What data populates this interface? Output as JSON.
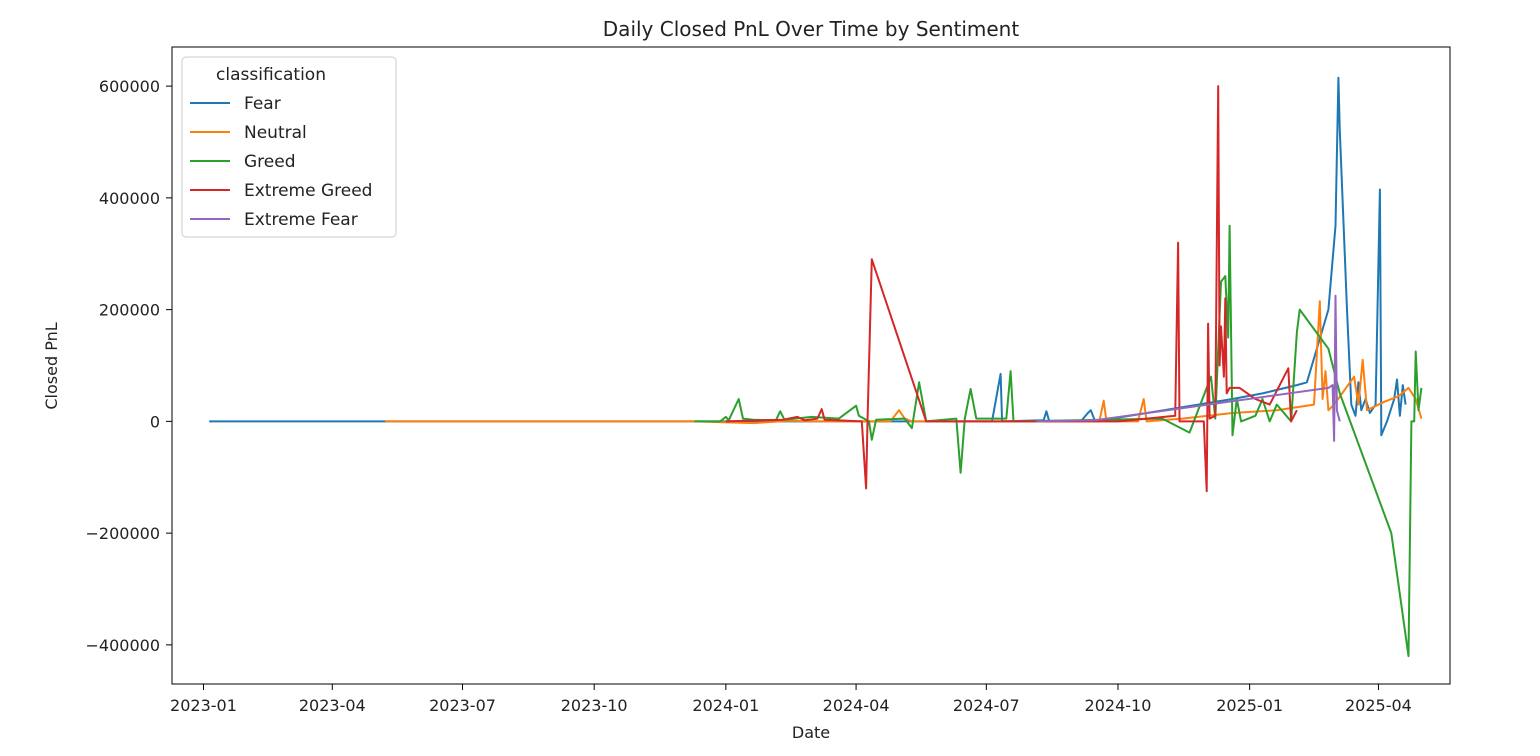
{
  "chart_data": {
    "type": "line",
    "title": "Daily Closed PnL Over Time by Sentiment",
    "xlabel": "Date",
    "ylabel": "Closed PnL",
    "x_range": [
      "2022-12-10",
      "2025-05-21"
    ],
    "ylim": [
      -470000,
      670000
    ],
    "x_ticks": [
      "2023-01-01",
      "2023-04-01",
      "2023-07-01",
      "2023-10-01",
      "2024-01-01",
      "2024-04-01",
      "2024-07-01",
      "2024-10-01",
      "2025-01-01",
      "2025-04-01"
    ],
    "x_tick_labels": [
      "2023-01",
      "2023-04",
      "2023-07",
      "2023-10",
      "2024-01",
      "2024-04",
      "2024-07",
      "2024-10",
      "2025-01",
      "2025-04"
    ],
    "y_ticks": [
      -400000,
      -200000,
      0,
      200000,
      400000,
      600000
    ],
    "y_tick_labels": [
      "−400000",
      "−200000",
      "0",
      "200000",
      "400000",
      "600000"
    ],
    "grid": false,
    "legend": {
      "title": "classification",
      "placement": "upper-left"
    },
    "series": [
      {
        "name": "Fear",
        "color": "#1f77b4",
        "points": [
          [
            "2023-01-05",
            0
          ],
          [
            "2023-05-08",
            0
          ],
          [
            "2024-07-05",
            0
          ],
          [
            "2024-07-11",
            85000
          ],
          [
            "2024-07-12",
            0
          ],
          [
            "2024-08-10",
            2000
          ],
          [
            "2024-08-12",
            18000
          ],
          [
            "2024-08-14",
            0
          ],
          [
            "2024-09-05",
            0
          ],
          [
            "2024-09-10",
            15000
          ],
          [
            "2024-09-12",
            20000
          ],
          [
            "2024-09-15",
            0
          ],
          [
            "2024-12-20",
            40000
          ],
          [
            "2025-01-10",
            50000
          ],
          [
            "2025-02-03",
            65000
          ],
          [
            "2025-02-10",
            70000
          ],
          [
            "2025-02-25",
            200000
          ],
          [
            "2025-03-02",
            350000
          ],
          [
            "2025-03-04",
            615000
          ],
          [
            "2025-03-05",
            520000
          ],
          [
            "2025-03-10",
            200000
          ],
          [
            "2025-03-13",
            30000
          ],
          [
            "2025-03-16",
            10000
          ],
          [
            "2025-03-18",
            70000
          ],
          [
            "2025-03-20",
            20000
          ],
          [
            "2025-03-23",
            40000
          ],
          [
            "2025-03-26",
            15000
          ],
          [
            "2025-03-30",
            30000
          ],
          [
            "2025-04-02",
            415000
          ],
          [
            "2025-04-03",
            -25000
          ],
          [
            "2025-04-07",
            0
          ],
          [
            "2025-04-12",
            40000
          ],
          [
            "2025-04-14",
            75000
          ],
          [
            "2025-04-16",
            10000
          ],
          [
            "2025-04-18",
            65000
          ],
          [
            "2025-04-20",
            30000
          ]
        ]
      },
      {
        "name": "Neutral",
        "color": "#ff7f0e",
        "points": [
          [
            "2023-05-08",
            0
          ],
          [
            "2023-12-10",
            0
          ],
          [
            "2024-01-20",
            -3000
          ],
          [
            "2024-02-15",
            1000
          ],
          [
            "2024-03-01",
            0
          ],
          [
            "2024-04-25",
            0
          ],
          [
            "2024-05-01",
            20000
          ],
          [
            "2024-05-05",
            5000
          ],
          [
            "2024-05-10",
            0
          ],
          [
            "2024-09-18",
            0
          ],
          [
            "2024-09-21",
            37000
          ],
          [
            "2024-09-23",
            0
          ],
          [
            "2024-10-15",
            0
          ],
          [
            "2024-10-19",
            40000
          ],
          [
            "2024-10-21",
            0
          ],
          [
            "2024-11-15",
            5000
          ],
          [
            "2024-12-20",
            15000
          ],
          [
            "2025-01-20",
            20000
          ],
          [
            "2025-02-15",
            30000
          ],
          [
            "2025-02-19",
            215000
          ],
          [
            "2025-02-21",
            40000
          ],
          [
            "2025-02-23",
            90000
          ],
          [
            "2025-02-25",
            20000
          ],
          [
            "2025-03-01",
            30000
          ],
          [
            "2025-03-15",
            80000
          ],
          [
            "2025-03-18",
            30000
          ],
          [
            "2025-03-21",
            110000
          ],
          [
            "2025-03-24",
            20000
          ],
          [
            "2025-04-05",
            35000
          ],
          [
            "2025-04-15",
            45000
          ],
          [
            "2025-04-22",
            60000
          ],
          [
            "2025-04-27",
            40000
          ],
          [
            "2025-05-01",
            5000
          ]
        ]
      },
      {
        "name": "Greed",
        "color": "#2ca02c",
        "points": [
          [
            "2023-12-10",
            0
          ],
          [
            "2023-12-28",
            0
          ],
          [
            "2024-01-01",
            8000
          ],
          [
            "2024-01-03",
            2000
          ],
          [
            "2024-01-10",
            40000
          ],
          [
            "2024-01-13",
            5000
          ],
          [
            "2024-01-20",
            3000
          ],
          [
            "2024-02-05",
            2000
          ],
          [
            "2024-02-08",
            18000
          ],
          [
            "2024-02-11",
            3000
          ],
          [
            "2024-03-01",
            8000
          ],
          [
            "2024-03-20",
            5000
          ],
          [
            "2024-04-01",
            28000
          ],
          [
            "2024-04-03",
            10000
          ],
          [
            "2024-04-10",
            0
          ],
          [
            "2024-04-12",
            -33000
          ],
          [
            "2024-04-15",
            3000
          ],
          [
            "2024-05-05",
            5000
          ],
          [
            "2024-05-10",
            -12000
          ],
          [
            "2024-05-15",
            70000
          ],
          [
            "2024-05-20",
            0
          ],
          [
            "2024-06-10",
            5000
          ],
          [
            "2024-06-13",
            -92000
          ],
          [
            "2024-06-16",
            5000
          ],
          [
            "2024-06-20",
            58000
          ],
          [
            "2024-06-24",
            5000
          ],
          [
            "2024-07-15",
            5000
          ],
          [
            "2024-07-18",
            90000
          ],
          [
            "2024-07-20",
            0
          ],
          [
            "2024-11-01",
            5000
          ],
          [
            "2024-11-20",
            -20000
          ],
          [
            "2024-12-05",
            80000
          ],
          [
            "2024-12-08",
            5000
          ],
          [
            "2024-12-12",
            250000
          ],
          [
            "2024-12-15",
            260000
          ],
          [
            "2024-12-17",
            150000
          ],
          [
            "2024-12-18",
            350000
          ],
          [
            "2024-12-20",
            -25000
          ],
          [
            "2024-12-23",
            40000
          ],
          [
            "2024-12-26",
            0
          ],
          [
            "2025-01-05",
            10000
          ],
          [
            "2025-01-10",
            40000
          ],
          [
            "2025-01-15",
            0
          ],
          [
            "2025-01-20",
            30000
          ],
          [
            "2025-01-30",
            0
          ],
          [
            "2025-02-03",
            160000
          ],
          [
            "2025-02-05",
            200000
          ],
          [
            "2025-02-25",
            130000
          ],
          [
            "2025-03-05",
            50000
          ],
          [
            "2025-04-10",
            -200000
          ],
          [
            "2025-04-22",
            -420000
          ],
          [
            "2025-04-24",
            0
          ],
          [
            "2025-04-26",
            0
          ],
          [
            "2025-04-27",
            125000
          ],
          [
            "2025-04-29",
            20000
          ],
          [
            "2025-05-01",
            60000
          ]
        ]
      },
      {
        "name": "Extreme Greed",
        "color": "#d62728",
        "points": [
          [
            "2024-01-01",
            0
          ],
          [
            "2024-02-10",
            3000
          ],
          [
            "2024-02-20",
            8000
          ],
          [
            "2024-02-25",
            2000
          ],
          [
            "2024-03-05",
            5000
          ],
          [
            "2024-03-08",
            22000
          ],
          [
            "2024-03-10",
            3000
          ],
          [
            "2024-04-05",
            0
          ],
          [
            "2024-04-08",
            -120000
          ],
          [
            "2024-04-09",
            0
          ],
          [
            "2024-04-12",
            290000
          ],
          [
            "2024-05-20",
            0
          ],
          [
            "2024-08-01",
            0
          ],
          [
            "2024-10-01",
            0
          ],
          [
            "2024-11-10",
            10000
          ],
          [
            "2024-11-12",
            320000
          ],
          [
            "2024-11-13",
            0
          ],
          [
            "2024-11-30",
            0
          ],
          [
            "2024-12-02",
            -125000
          ],
          [
            "2024-12-03",
            175000
          ],
          [
            "2024-12-04",
            5000
          ],
          [
            "2024-12-08",
            10000
          ],
          [
            "2024-12-10",
            600000
          ],
          [
            "2024-12-11",
            100000
          ],
          [
            "2024-12-12",
            170000
          ],
          [
            "2024-12-14",
            80000
          ],
          [
            "2024-12-15",
            220000
          ],
          [
            "2024-12-16",
            50000
          ],
          [
            "2024-12-18",
            60000
          ],
          [
            "2024-12-25",
            60000
          ],
          [
            "2025-01-05",
            40000
          ],
          [
            "2025-01-15",
            30000
          ],
          [
            "2025-01-25",
            80000
          ],
          [
            "2025-01-28",
            95000
          ],
          [
            "2025-01-30",
            0
          ],
          [
            "2025-02-03",
            20000
          ]
        ]
      },
      {
        "name": "Extreme Fear",
        "color": "#9467bd",
        "points": [
          [
            "2024-08-05",
            0
          ],
          [
            "2024-09-15",
            2000
          ],
          [
            "2025-02-25",
            60000
          ],
          [
            "2025-02-28",
            65000
          ],
          [
            "2025-03-01",
            -35000
          ],
          [
            "2025-03-02",
            225000
          ],
          [
            "2025-03-03",
            20000
          ],
          [
            "2025-03-05",
            0
          ]
        ]
      }
    ]
  }
}
